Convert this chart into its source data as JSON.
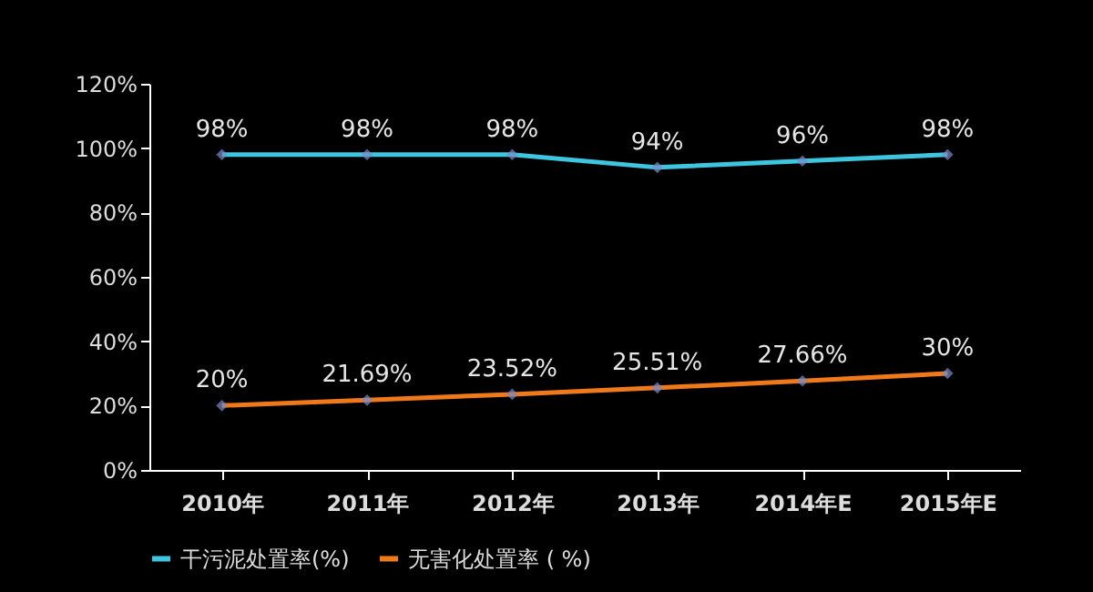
{
  "chart_data": {
    "type": "line",
    "categories": [
      "2010年",
      "2011年",
      "2012年",
      "2013年",
      "2014年E",
      "2015年E"
    ],
    "series": [
      {
        "name": "干污泥处置率(%)",
        "color": "#3ec6e0",
        "values": [
          98,
          98,
          98,
          94,
          96,
          98
        ],
        "value_labels": [
          "98%",
          "98%",
          "98%",
          "94%",
          "96%",
          "98%"
        ]
      },
      {
        "name": "无害化处置率 ( %)",
        "color": "#f07a1a",
        "values": [
          20,
          21.69,
          23.52,
          25.51,
          27.66,
          30
        ],
        "value_labels": [
          "20%",
          "21.69%",
          "23.52%",
          "25.51%",
          "27.66%",
          "30%"
        ]
      }
    ],
    "ylim": [
      0,
      120
    ],
    "yticks": [
      {
        "value": 0,
        "label": "0%"
      },
      {
        "value": 20,
        "label": "20%"
      },
      {
        "value": 40,
        "label": "40%"
      },
      {
        "value": 60,
        "label": "60%"
      },
      {
        "value": 80,
        "label": "80%"
      },
      {
        "value": 100,
        "label": "100%"
      },
      {
        "value": 120,
        "label": "120%"
      }
    ],
    "grid": false,
    "legend": "bottom",
    "marker": "diamond",
    "line_style": "solid"
  }
}
